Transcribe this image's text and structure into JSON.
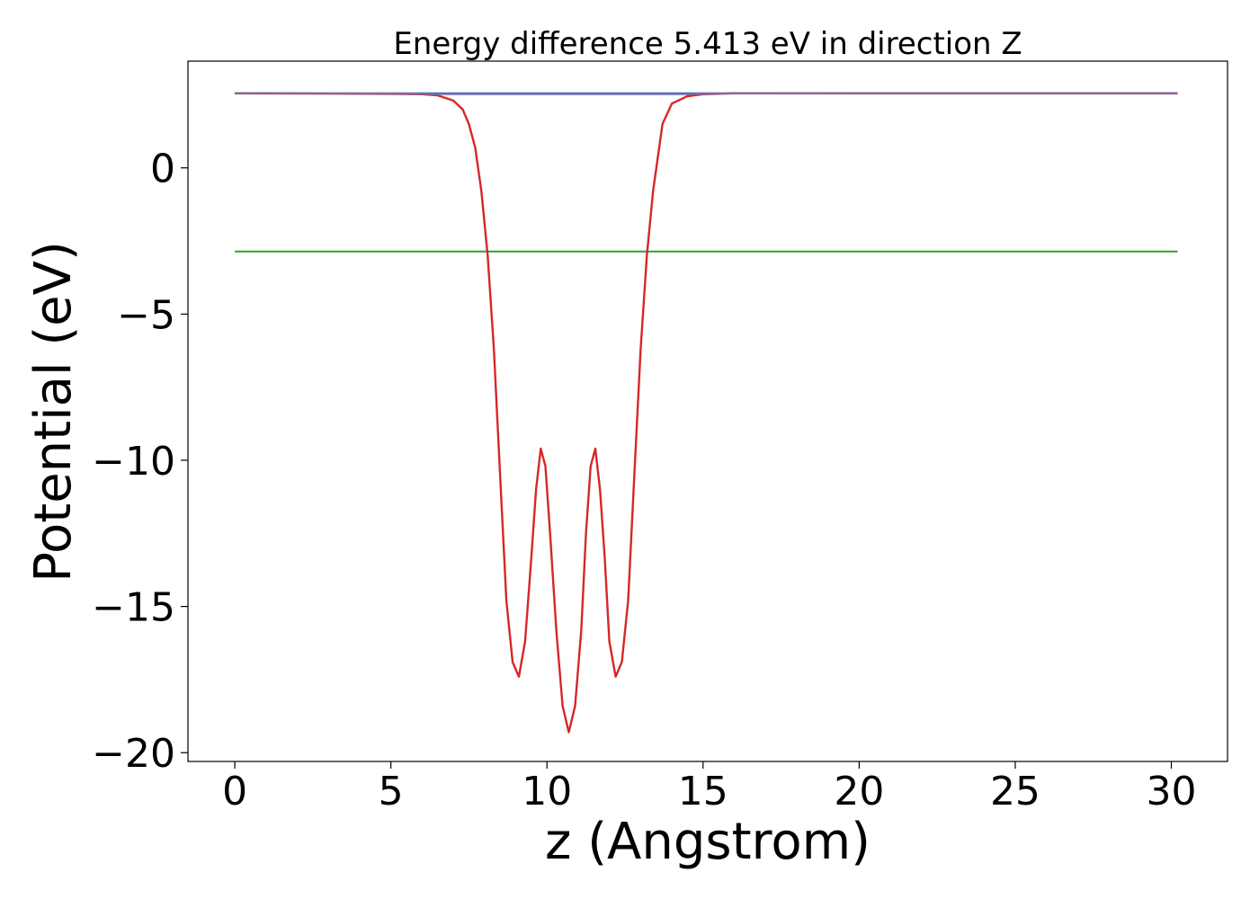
{
  "chart_data": {
    "type": "line",
    "title": "Energy difference 5.413 eV in direction Z",
    "xlabel": "z (Angstrom)",
    "ylabel": "Potential (eV)",
    "xlim": [
      -1.5,
      31.8
    ],
    "ylim": [
      -20.3,
      3.65
    ],
    "xticks": [
      0,
      5,
      10,
      15,
      20,
      25,
      30
    ],
    "xtick_labels": [
      "0",
      "5",
      "10",
      "15",
      "20",
      "25",
      "30"
    ],
    "yticks": [
      0,
      -5,
      -10,
      -15,
      -20
    ],
    "ytick_labels": [
      "0",
      "−5",
      "−10",
      "−15",
      "−20"
    ],
    "grid": false,
    "legend": "none",
    "series": [
      {
        "color": "#1f77b4",
        "x": [
          0,
          30.2
        ],
        "y": [
          2.55,
          2.55
        ]
      },
      {
        "color": "#2ca02c",
        "x": [
          0,
          30.2
        ],
        "y": [
          -2.86,
          -2.86
        ]
      },
      {
        "color": "#d62728",
        "x": [
          0,
          5,
          6,
          6.5,
          7,
          7.3,
          7.5,
          7.7,
          7.9,
          8.1,
          8.3,
          8.5,
          8.7,
          8.9,
          9.1,
          9.3,
          9.5,
          9.65,
          9.8,
          9.95,
          10.1,
          10.3,
          10.5,
          10.7,
          10.9,
          11.1,
          11.25,
          11.4,
          11.55,
          11.7,
          11.85,
          12.0,
          12.2,
          12.4,
          12.6,
          12.8,
          13.0,
          13.2,
          13.4,
          13.7,
          14.0,
          14.5,
          15.0,
          16,
          20,
          25,
          30.2
        ],
        "y": [
          2.55,
          2.53,
          2.52,
          2.48,
          2.3,
          2.0,
          1.5,
          0.7,
          -0.8,
          -3.0,
          -6.2,
          -10.5,
          -14.8,
          -16.9,
          -17.4,
          -16.2,
          -13.3,
          -11.0,
          -9.6,
          -10.2,
          -12.5,
          -15.8,
          -18.4,
          -19.3,
          -18.4,
          -15.8,
          -12.5,
          -10.2,
          -9.6,
          -11.0,
          -13.3,
          -16.2,
          -17.4,
          -16.9,
          -14.8,
          -10.5,
          -6.2,
          -3.0,
          -0.8,
          1.5,
          2.2,
          2.45,
          2.52,
          2.55,
          2.55,
          2.55,
          2.55
        ]
      },
      {
        "color": "#7b6fb0",
        "x": [
          0,
          5,
          6,
          6.5,
          7,
          7.2,
          14.0,
          14.4,
          15.0,
          16,
          20,
          25,
          30.2
        ],
        "y": [
          2.56,
          2.54,
          2.53,
          2.52,
          2.52,
          2.52,
          2.52,
          2.52,
          2.53,
          2.55,
          2.56,
          2.56,
          2.56
        ]
      }
    ]
  }
}
